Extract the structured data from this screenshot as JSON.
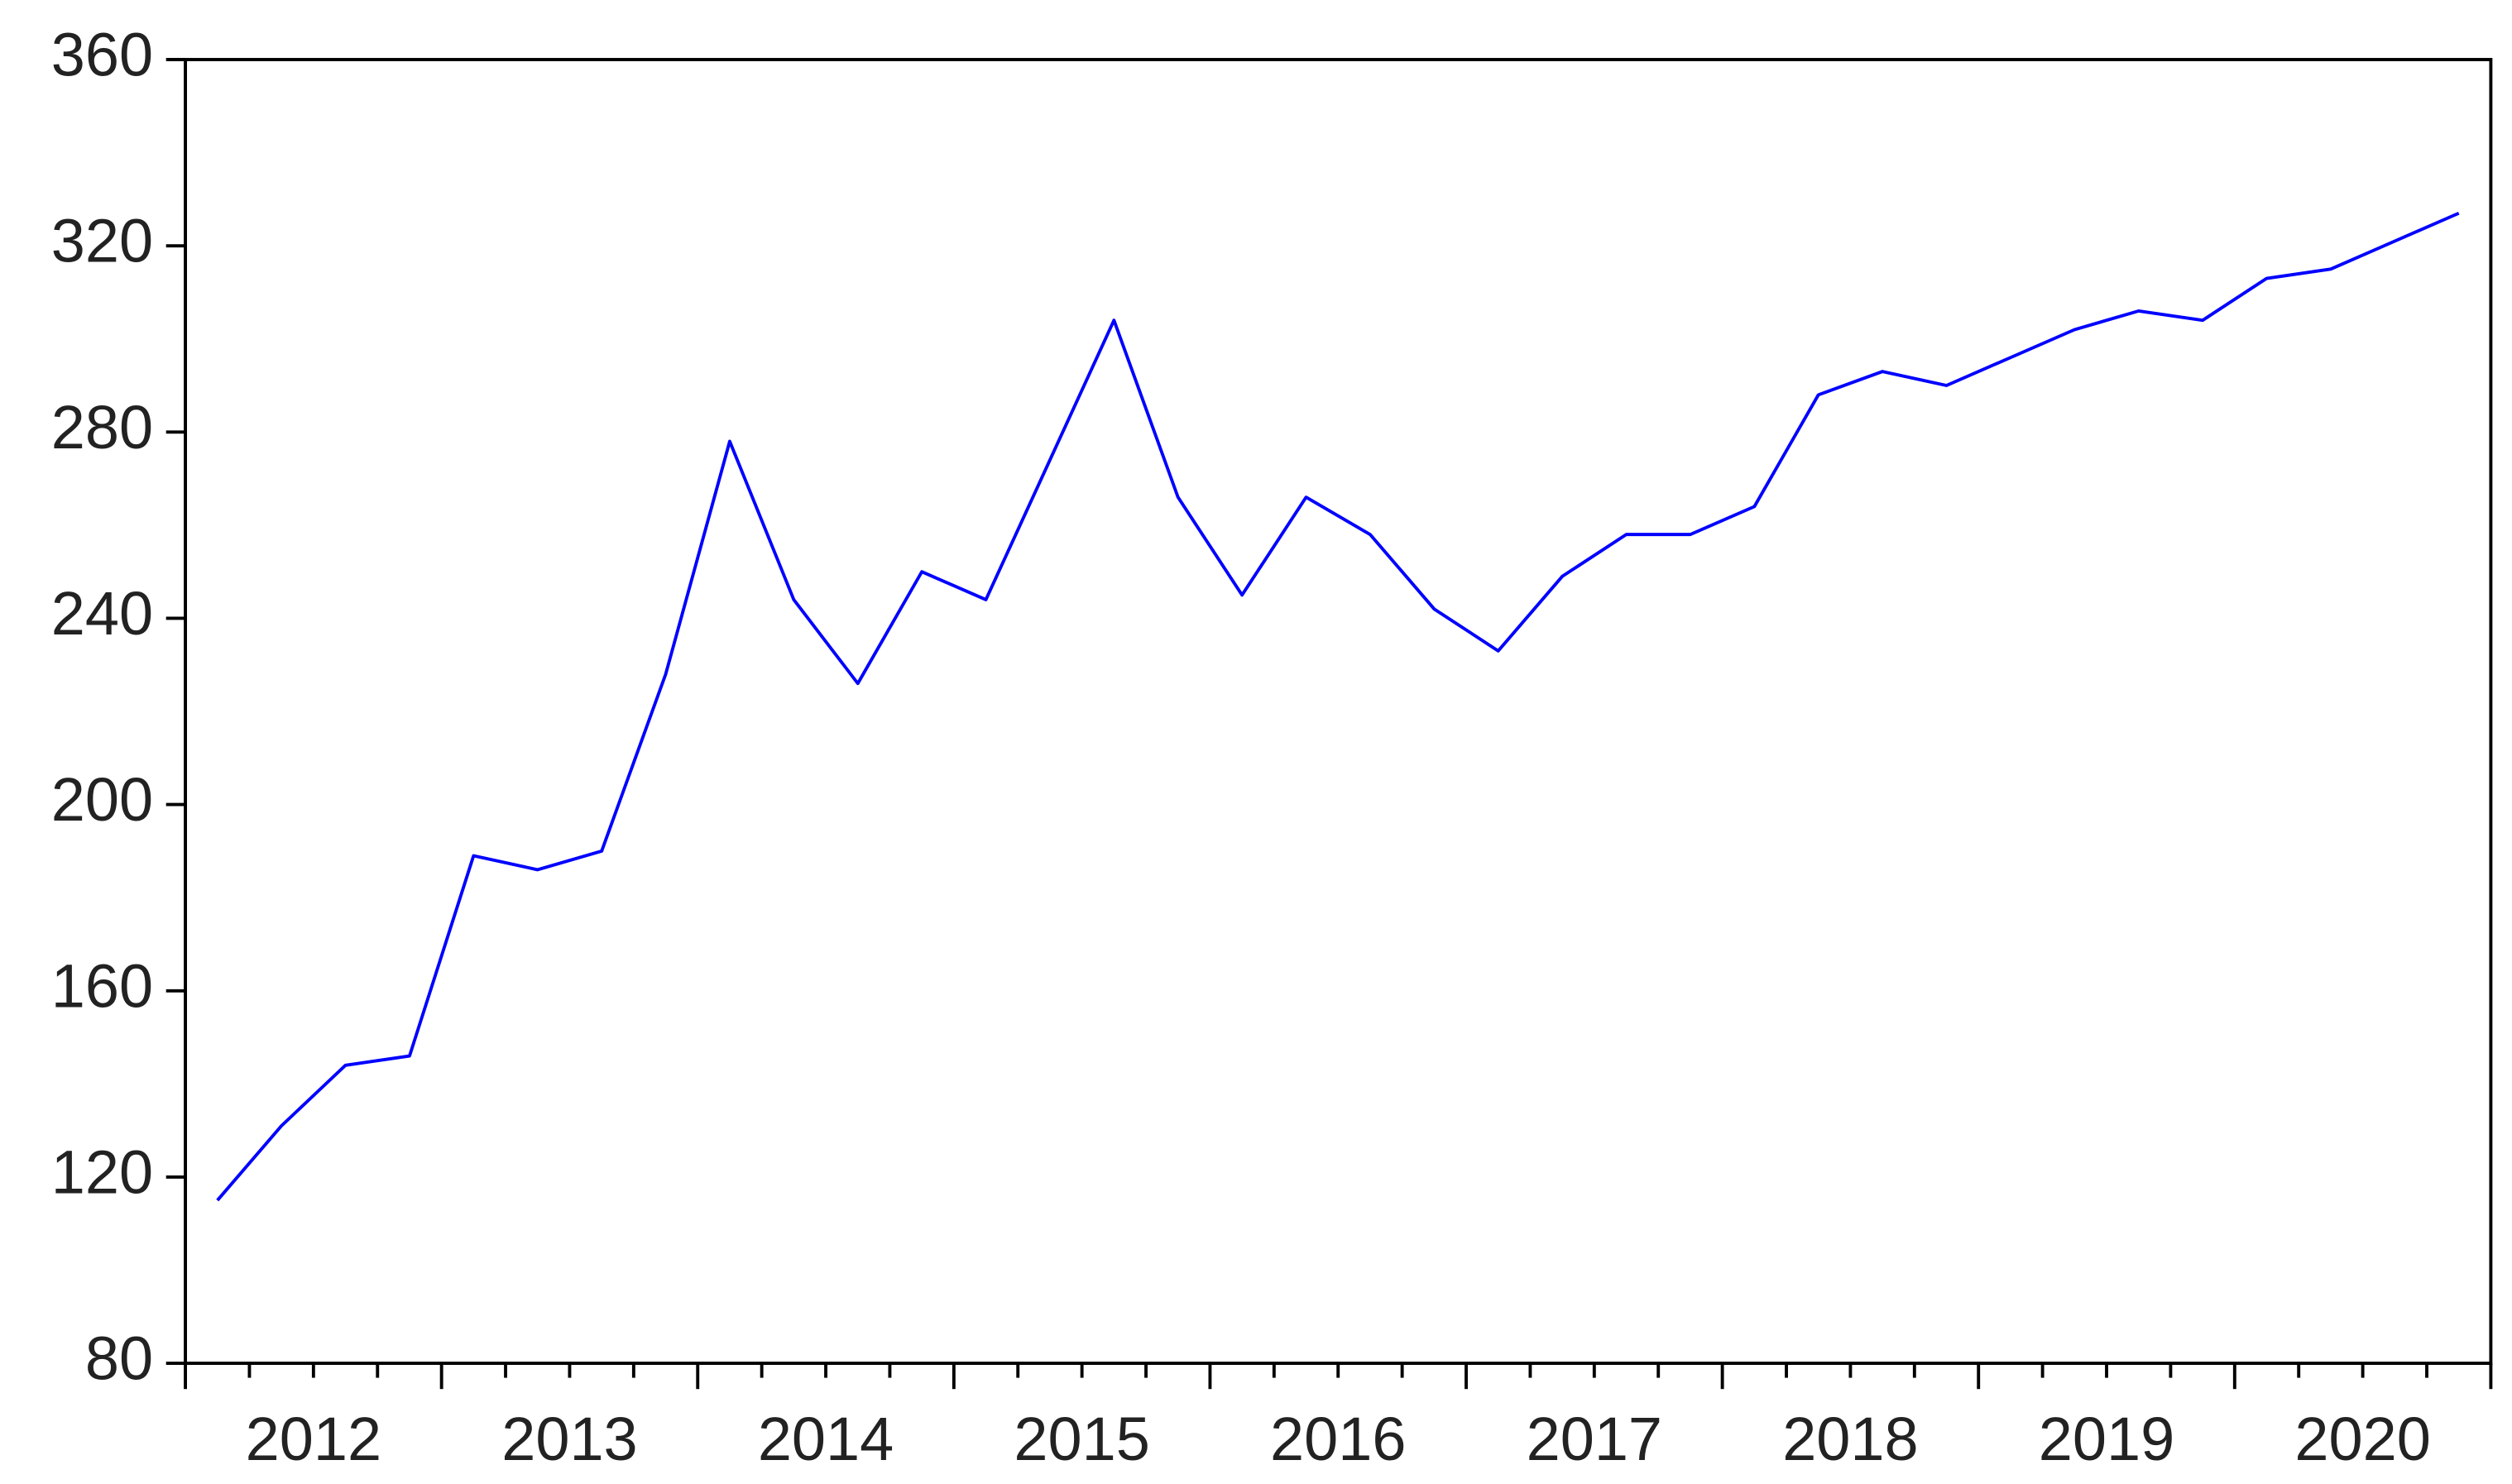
{
  "chart_data": {
    "type": "line",
    "categories": [
      null,
      "2012",
      null,
      null,
      null,
      "2013",
      null,
      null,
      null,
      "2014",
      null,
      null,
      null,
      "2015",
      null,
      null,
      null,
      "2016",
      null,
      null,
      null,
      "2017",
      null,
      null,
      null,
      "2018",
      null,
      null,
      null,
      "2019",
      null,
      null,
      null,
      "2020",
      null,
      null
    ],
    "series": [
      {
        "color": "#0000ff",
        "values": [
          115,
          131,
          144,
          146,
          189,
          186,
          190,
          228,
          278,
          244,
          226,
          250,
          244,
          274,
          304,
          266,
          245,
          266,
          258,
          242,
          233,
          249,
          258,
          258,
          264,
          288,
          293,
          290,
          296,
          302,
          306,
          304,
          313,
          315,
          321,
          327
        ]
      }
    ],
    "ylim": [
      80,
      360
    ],
    "yticks": [
      80,
      120,
      160,
      200,
      240,
      280,
      320,
      360
    ],
    "grid": false
  }
}
